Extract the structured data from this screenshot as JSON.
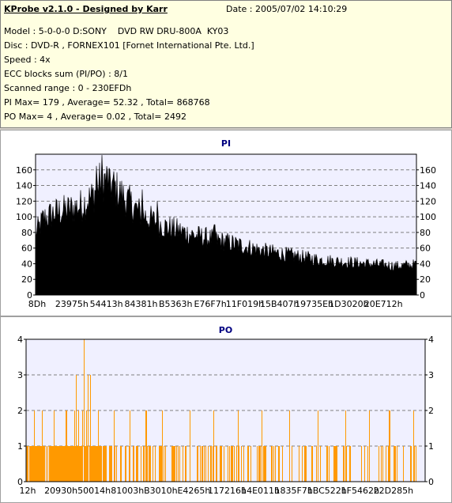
{
  "info": {
    "app_title": "KProbe v2.1.0 - Designed by Karr",
    "date": "Date : 2005/07/02 14:10:29",
    "lines": [
      "Model : 5-0-0-0 D:SONY    DVD RW DRU-800A  KY03",
      "Disc : DVD-R , FORNEX101 [Fornet International Pte. Ltd.]",
      "Speed : 4x",
      "ECC blocks sum (PI/PO) : 8/1",
      "Scanned range : 0 - 230EFDh",
      "PI Max= 179 , Average= 52.32 , Total= 868768",
      "PO Max= 4 , Average= 0.02 , Total= 2492"
    ]
  },
  "chart_data": [
    {
      "type": "area",
      "title": "PI",
      "x_tick_labels": [
        "8Dh",
        "23975h",
        "54413h",
        "84381h",
        "B5363h",
        "E76F7h",
        "11F019h",
        "15B407h",
        "19735Eh",
        "1D3020h",
        "20E712h"
      ],
      "y_ticks": [
        0,
        20,
        40,
        60,
        80,
        100,
        120,
        140,
        160
      ],
      "ylim": [
        0,
        180
      ],
      "max": 179,
      "average": 52.32,
      "profile": [
        [
          0.0,
          80
        ],
        [
          0.02,
          100
        ],
        [
          0.05,
          108
        ],
        [
          0.09,
          113
        ],
        [
          0.12,
          118
        ],
        [
          0.15,
          130
        ],
        [
          0.17,
          150
        ],
        [
          0.19,
          152
        ],
        [
          0.21,
          140
        ],
        [
          0.24,
          125
        ],
        [
          0.27,
          110
        ],
        [
          0.3,
          100
        ],
        [
          0.34,
          90
        ],
        [
          0.38,
          84
        ],
        [
          0.42,
          78
        ],
        [
          0.46,
          74
        ],
        [
          0.5,
          70
        ],
        [
          0.55,
          64
        ],
        [
          0.6,
          58
        ],
        [
          0.65,
          54
        ],
        [
          0.7,
          50
        ],
        [
          0.75,
          46
        ],
        [
          0.8,
          44
        ],
        [
          0.85,
          42
        ],
        [
          0.9,
          40
        ],
        [
          0.95,
          38
        ],
        [
          1.0,
          40
        ]
      ],
      "spikes": [
        [
          0.175,
          179
        ],
        [
          0.16,
          165
        ],
        [
          0.195,
          160
        ],
        [
          0.28,
          135
        ],
        [
          0.32,
          120
        ],
        [
          0.47,
          90
        ]
      ],
      "fill_color": "#000000",
      "grid": true
    },
    {
      "type": "bar",
      "title": "PO",
      "x_tick_labels": [
        "12h",
        "20930h",
        "50014h",
        "81003h",
        "B3010h",
        "E4265h",
        "117216h",
        "14E011h",
        "1835F7h",
        "1BC522h",
        "1F5462h",
        "22D285h"
      ],
      "y_ticks": [
        0,
        1,
        2,
        3,
        4
      ],
      "ylim": [
        0,
        4
      ],
      "max": 4,
      "average": 0.02,
      "ones_density": [
        [
          0.0,
          0.85
        ],
        [
          0.15,
          0.9
        ],
        [
          0.25,
          0.55
        ],
        [
          0.45,
          0.35
        ],
        [
          0.65,
          0.25
        ],
        [
          1.0,
          0.2
        ]
      ],
      "twos": [
        0.02,
        0.04,
        0.07,
        0.1,
        0.12,
        0.13,
        0.14,
        0.15,
        0.16,
        0.18,
        0.22,
        0.26,
        0.3,
        0.34,
        0.41,
        0.47,
        0.53,
        0.59,
        0.66,
        0.73,
        0.8,
        0.86,
        0.91,
        0.97
      ],
      "threes": [
        0.125,
        0.155,
        0.16
      ],
      "fours": [
        0.145
      ],
      "bar_color": "#ff9900",
      "grid": true
    }
  ]
}
